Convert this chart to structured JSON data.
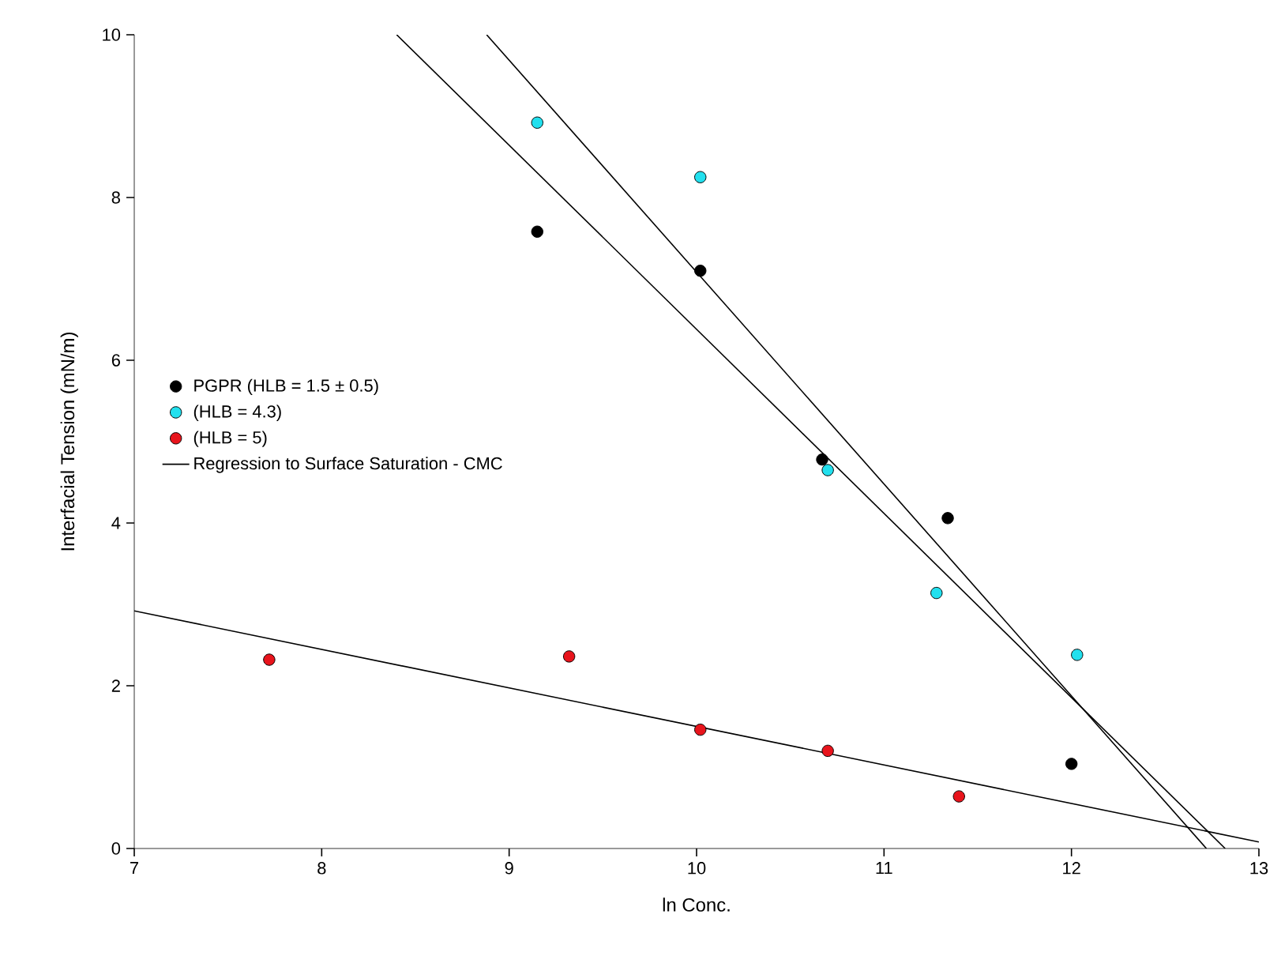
{
  "chart_data": {
    "type": "scatter",
    "xlabel": "ln Conc.",
    "ylabel": "Interfacial Tension (mN/m)",
    "xlim": [
      7,
      13
    ],
    "ylim": [
      0,
      10
    ],
    "xticks": [
      7,
      8,
      9,
      10,
      11,
      12,
      13
    ],
    "yticks": [
      0,
      2,
      4,
      6,
      8,
      10
    ],
    "marker": "circle",
    "legend": "left",
    "grid": false,
    "series": [
      {
        "name": "PGPR (HLB = 1.5 ± 0.5)",
        "color": "#000000",
        "x": [
          9.15,
          10.02,
          10.67,
          11.34,
          12.0
        ],
        "values": [
          7.58,
          7.1,
          4.78,
          4.06,
          1.04
        ]
      },
      {
        "name": "(HLB = 4.3)",
        "color": "#22e0ee",
        "x": [
          9.15,
          10.02,
          10.7,
          11.28,
          12.03
        ],
        "values": [
          8.92,
          8.25,
          4.65,
          3.14,
          2.38
        ]
      },
      {
        "name": "(HLB = 5)",
        "color": "#e8141c",
        "x": [
          7.72,
          9.32,
          10.02,
          10.7,
          11.4
        ],
        "values": [
          2.32,
          2.36,
          1.46,
          1.2,
          0.64
        ]
      },
      {
        "name": "Regression to Surface Saturation - CMC",
        "type": "line",
        "color": "#000000",
        "marker": "none",
        "x": [
          8.4,
          12.82
        ],
        "values": [
          10,
          0
        ]
      },
      {
        "type": "line",
        "color": "#000000",
        "marker": "none",
        "x": [
          8.88,
          12.72
        ],
        "values": [
          10,
          0
        ]
      },
      {
        "type": "line",
        "color": "#000000",
        "marker": "none",
        "x": [
          7,
          13
        ],
        "values": [
          2.92,
          0.08
        ]
      }
    ]
  }
}
